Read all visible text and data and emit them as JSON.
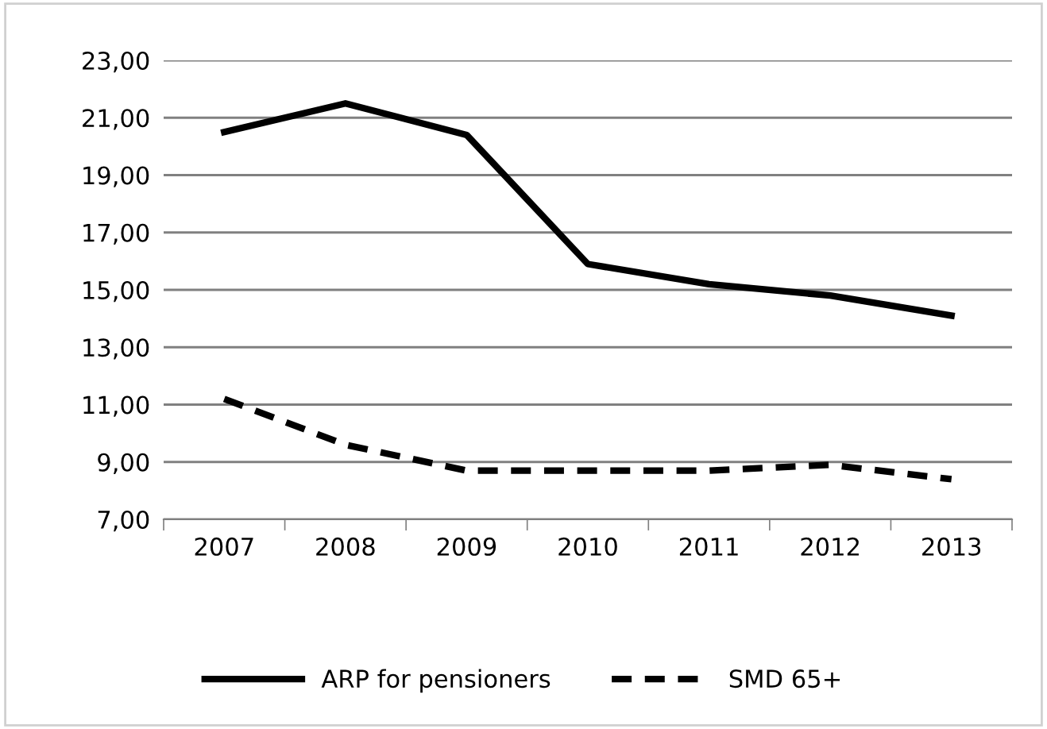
{
  "chart_data": {
    "type": "line",
    "categories": [
      "2007",
      "2008",
      "2009",
      "2010",
      "2011",
      "2012",
      "2013"
    ],
    "series": [
      {
        "name": "ARP for pensioners",
        "color": "#000000",
        "line_style": "solid",
        "values": [
          20.5,
          21.5,
          20.4,
          15.9,
          15.2,
          14.8,
          14.1
        ]
      },
      {
        "name": "SMD 65+",
        "color": "#000000",
        "line_style": "dashed",
        "values": [
          11.2,
          9.6,
          8.7,
          8.7,
          8.7,
          8.9,
          8.4
        ]
      }
    ],
    "ylim": [
      7,
      23
    ],
    "yticks": [
      {
        "value": 7,
        "label": "7,00"
      },
      {
        "value": 9,
        "label": "9,00"
      },
      {
        "value": 11,
        "label": "11,00"
      },
      {
        "value": 13,
        "label": "13,00"
      },
      {
        "value": 15,
        "label": "15,00"
      },
      {
        "value": 17,
        "label": "17,00"
      },
      {
        "value": 19,
        "label": "19,00"
      },
      {
        "value": 21,
        "label": "21,00"
      },
      {
        "value": 23,
        "label": "23,00"
      }
    ],
    "grid": "y",
    "legend": "bottom",
    "marker": "none"
  }
}
